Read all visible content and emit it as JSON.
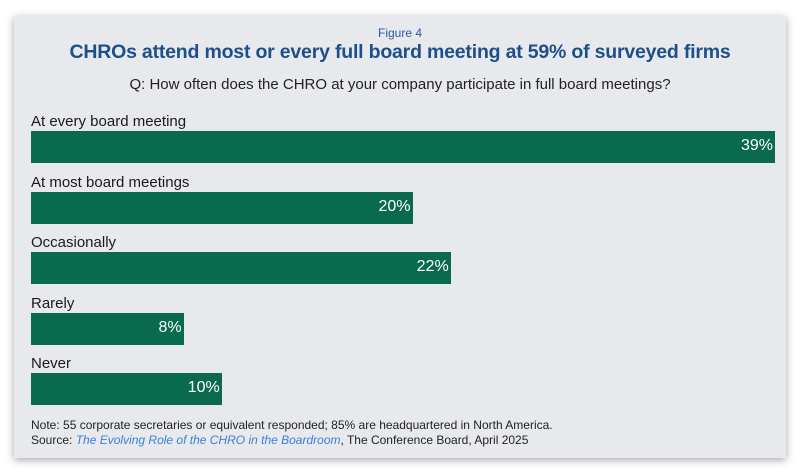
{
  "chart_data": {
    "type": "bar",
    "orientation": "horizontal",
    "figure_label": "Figure 4",
    "title": "CHROs attend most or every full board meeting at 59% of surveyed firms",
    "subtitle": "Q: How often does the CHRO at your company participate in full board meetings?",
    "categories": [
      "At every board meeting",
      "At most board meetings",
      "Occasionally",
      "Rarely",
      "Never"
    ],
    "values": [
      39,
      20,
      22,
      8,
      10
    ],
    "value_labels": [
      "39%",
      "20%",
      "22%",
      "8%",
      "10%"
    ],
    "xlim": [
      0,
      39
    ],
    "bar_color": "#0a6a4e",
    "grid": false
  },
  "footer": {
    "note": "Note: 55 corporate secretaries or equivalent responded; 85% are headquartered in North America.",
    "source_prefix": "Source: ",
    "source_title": "The Evolving Role of the CHRO in the Boardroom",
    "source_suffix": ", The Conference Board, April 2025"
  }
}
